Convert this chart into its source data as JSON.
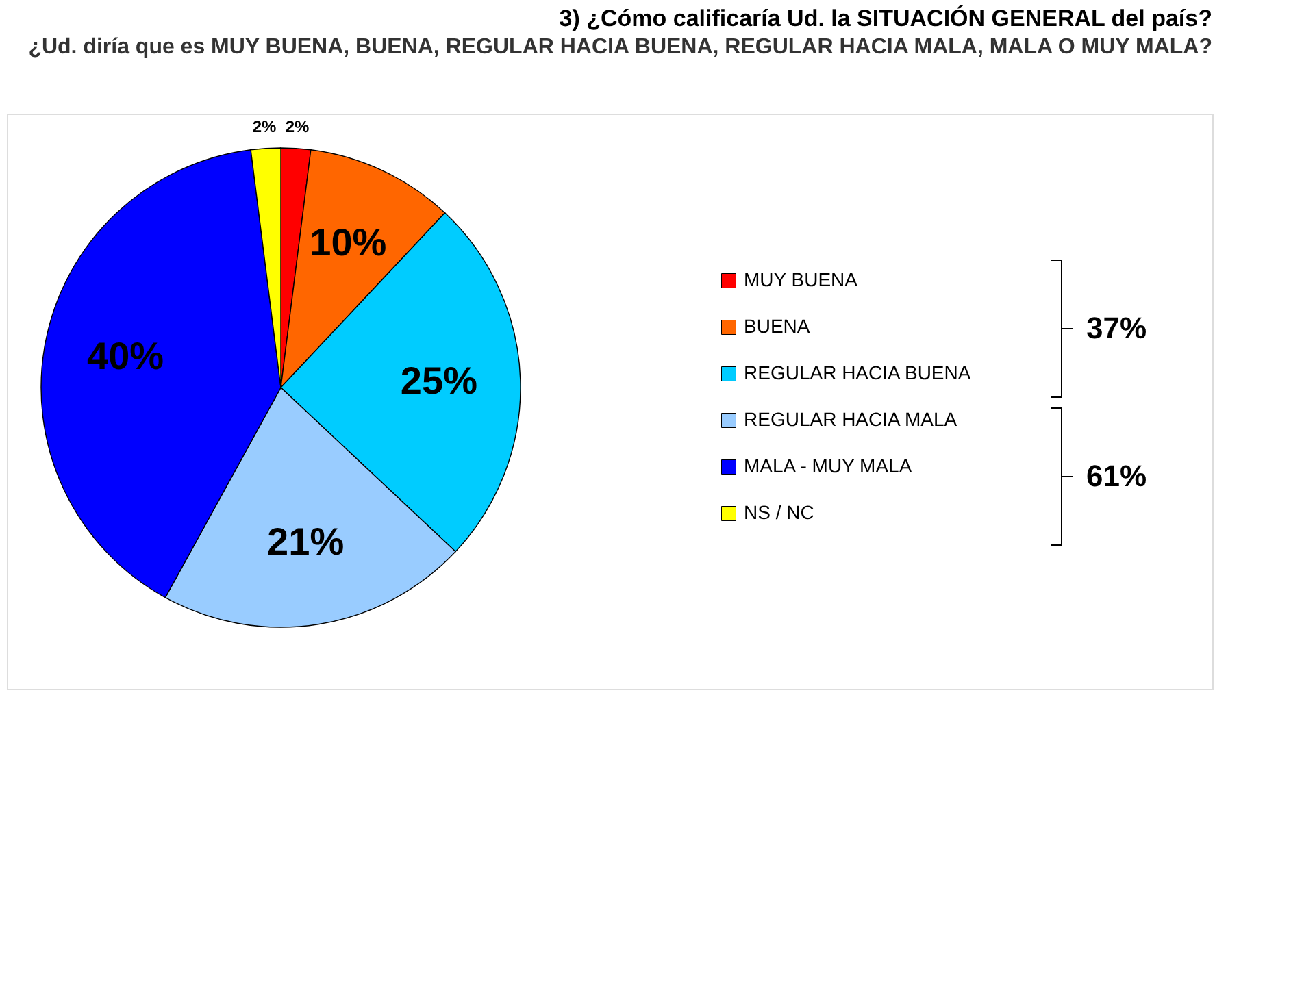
{
  "chart_data": {
    "type": "pie",
    "title": "3) ¿Cómo calificaría Ud. la SITUACIÓN GENERAL del país?",
    "subtitle": "¿Ud. diría que es MUY BUENA, BUENA, REGULAR HACIA BUENA, REGULAR HACIA MALA, MALA O MUY MALA?",
    "categories": [
      "MUY BUENA",
      "BUENA",
      "REGULAR HACIA BUENA",
      "REGULAR HACIA MALA",
      "MALA - MUY MALA",
      "NS / NC"
    ],
    "values": [
      2,
      10,
      25,
      21,
      40,
      2
    ],
    "colors": [
      "#ff0000",
      "#ff6600",
      "#00ccff",
      "#99ccff",
      "#0000ff",
      "#ffff00"
    ],
    "value_labels": [
      "2%",
      "10%",
      "25%",
      "21%",
      "40%",
      "2%"
    ],
    "legend": "right",
    "annotations": [
      "37%",
      "61%"
    ]
  }
}
